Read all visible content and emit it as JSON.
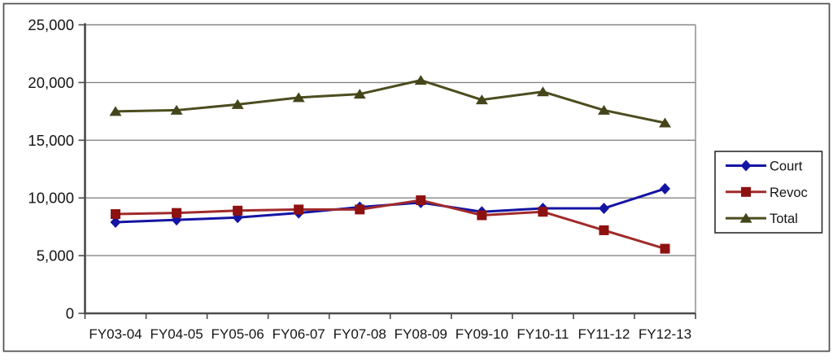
{
  "chart_data": {
    "type": "line",
    "title": "",
    "xlabel": "",
    "ylabel": "",
    "categories": [
      "FY03-04",
      "FY04-05",
      "FY05-06",
      "FY06-07",
      "FY07-08",
      "FY08-09",
      "FY09-10",
      "FY10-11",
      "FY11-12",
      "FY12-13"
    ],
    "series": [
      {
        "name": "Court",
        "marker": "diamond",
        "color": "#1414A3",
        "marker_color": "#1414A3",
        "values": [
          7900,
          8100,
          8300,
          8700,
          9200,
          9600,
          8800,
          9100,
          9100,
          10800
        ]
      },
      {
        "name": "Revoc",
        "marker": "square",
        "color": "#A12A2A",
        "marker_color": "#8E1111",
        "values": [
          8600,
          8700,
          8900,
          9000,
          9000,
          9800,
          8500,
          8800,
          7200,
          5600
        ]
      },
      {
        "name": "Total",
        "marker": "triangle",
        "color": "#4C4C1F",
        "marker_color": "#45451B",
        "values": [
          17500,
          17600,
          18100,
          18700,
          19000,
          20200,
          18500,
          19200,
          17600,
          16500
        ]
      }
    ],
    "ylim": [
      0,
      25000
    ],
    "ytick_step": 5000,
    "ytick_labels": [
      "0",
      "5,000",
      "10,000",
      "15,000",
      "20,000",
      "25,000"
    ],
    "grid": "horizontal",
    "legend_position": "right",
    "legend_entries": [
      "Court",
      "Revoc",
      "Total"
    ]
  },
  "colors": {
    "gridline": "#858585",
    "axis": "#4A4A4A",
    "frame_border": "#4F4F4F",
    "legend_border": "#2B2B2B",
    "text": "#141414",
    "background": "#FFFFFF"
  }
}
